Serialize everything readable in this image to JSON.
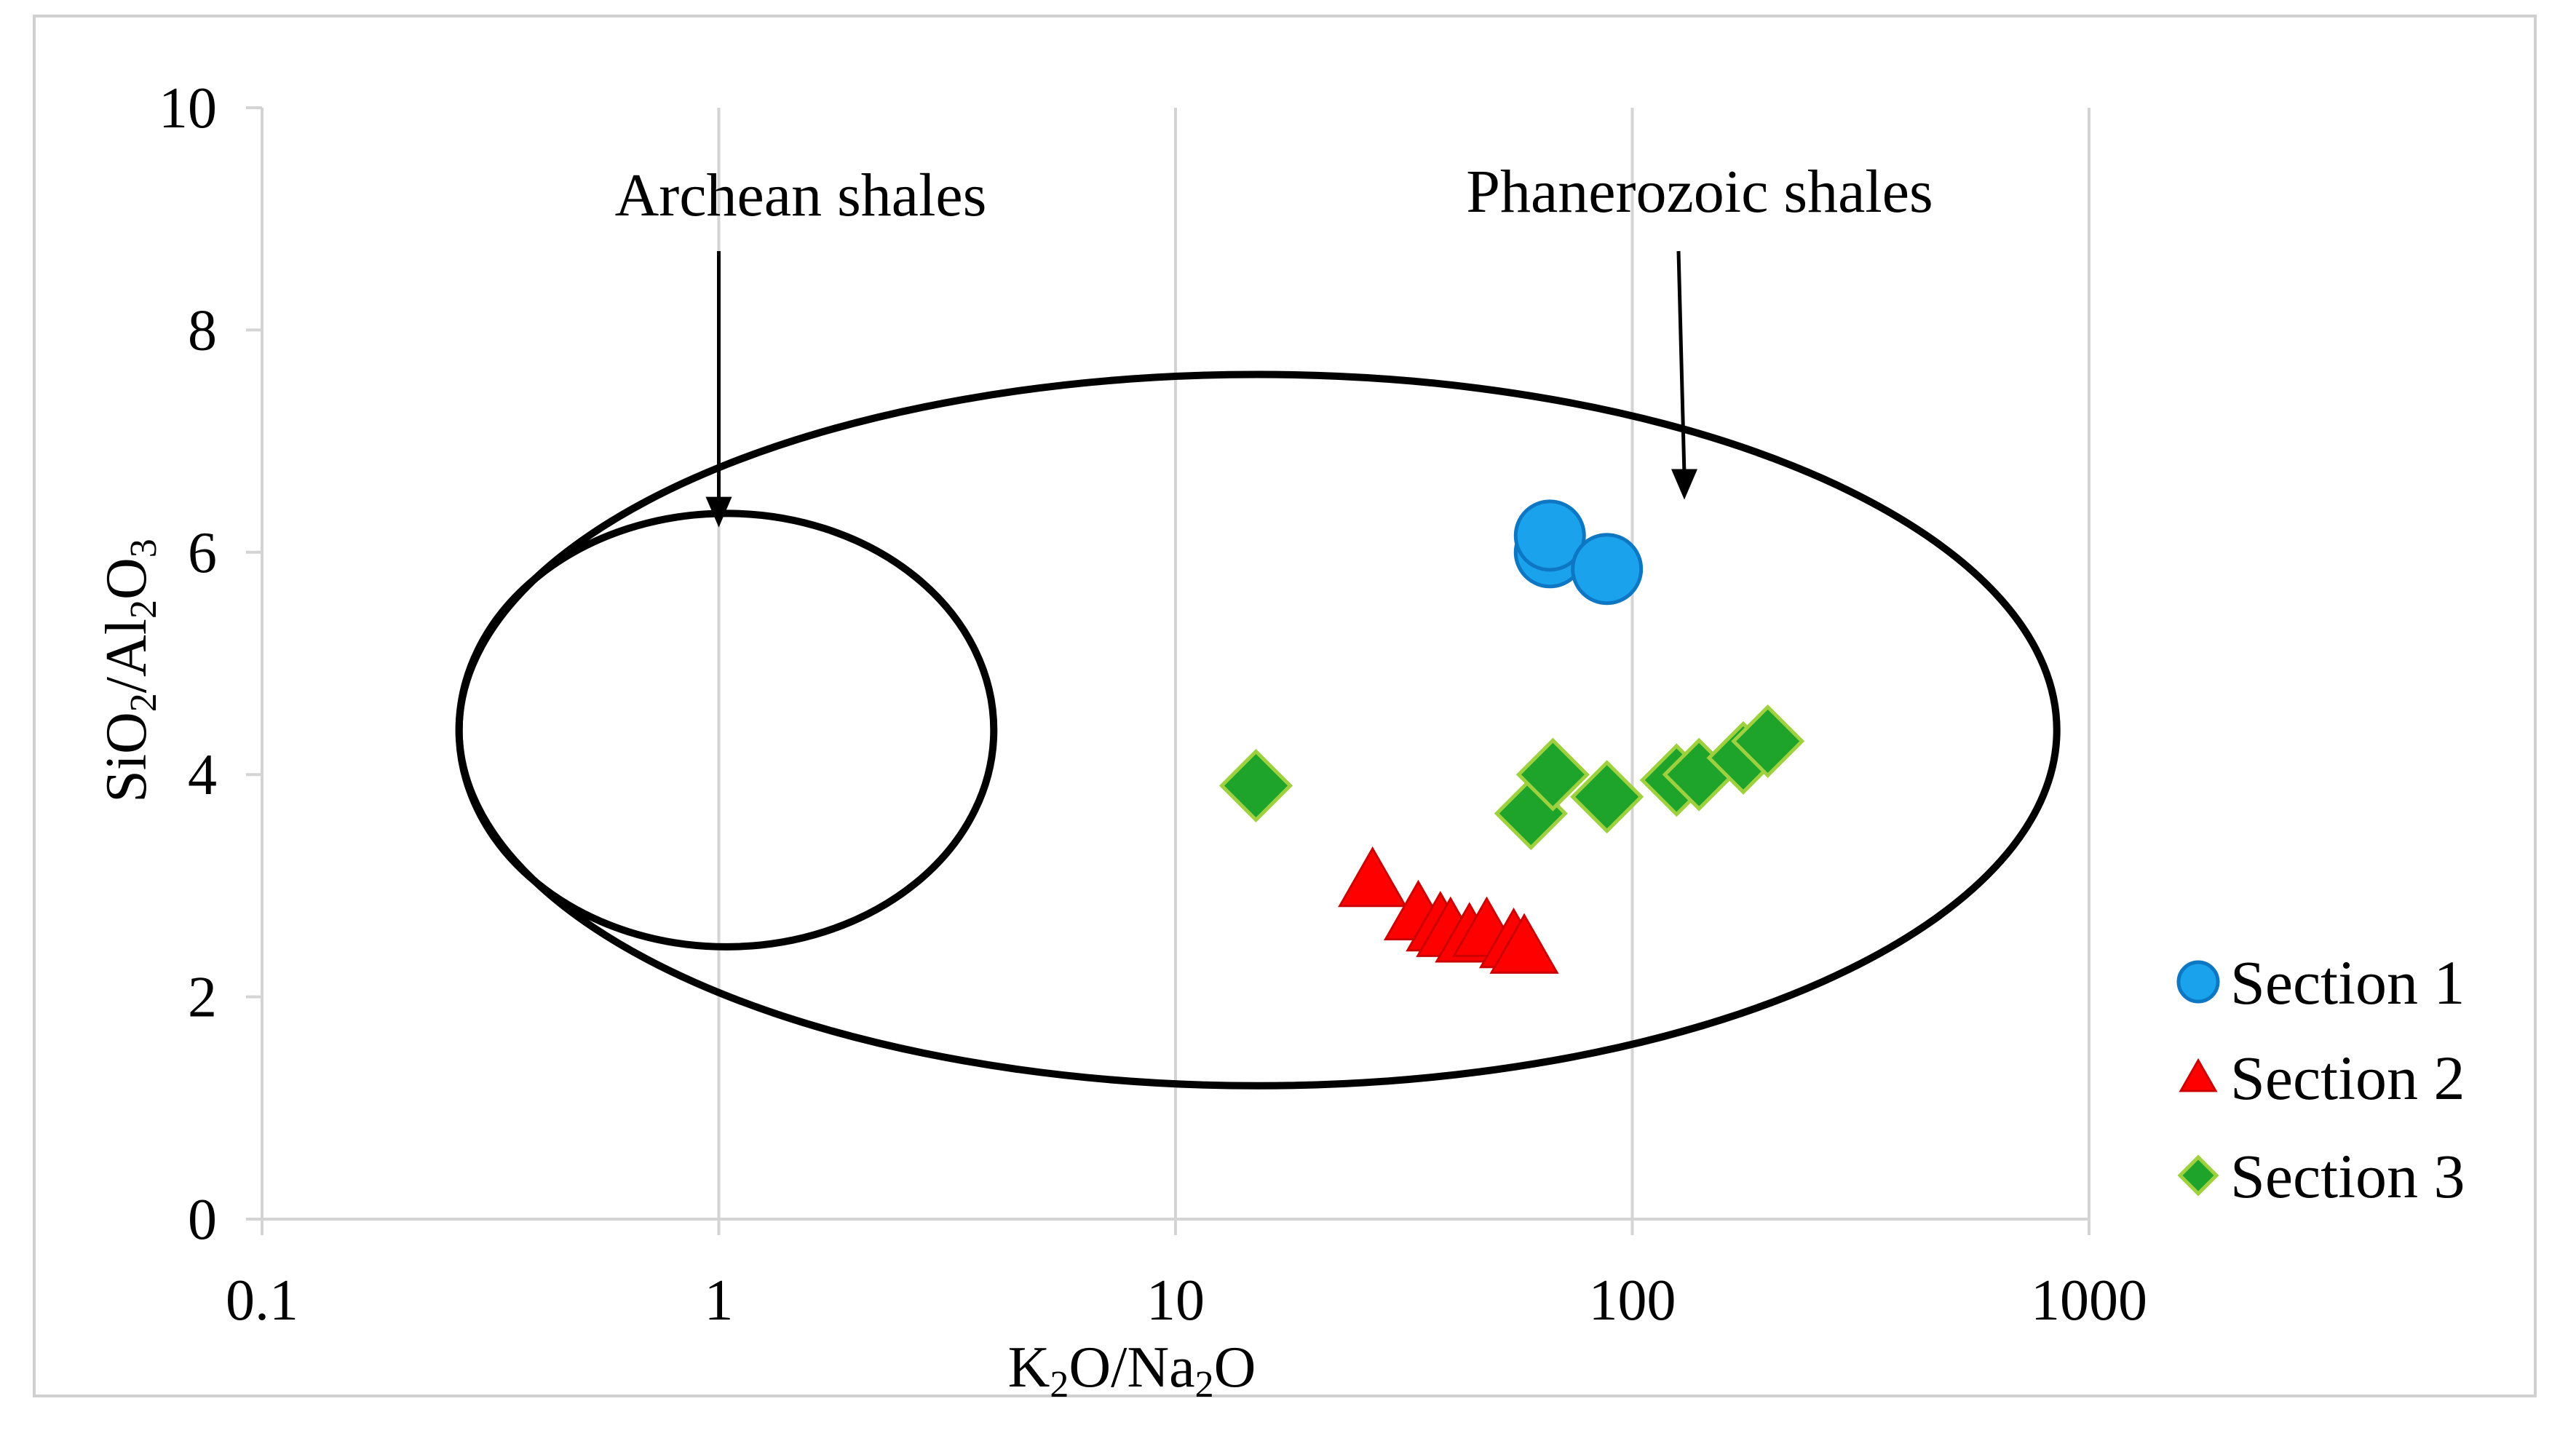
{
  "chart_data": {
    "type": "scatter",
    "x_scale": "log",
    "xlabel": {
      "parts": [
        "K",
        "2",
        "O/Na",
        "2",
        "O"
      ]
    },
    "ylabel": {
      "parts": [
        "SiO",
        "2",
        "/Al",
        "2",
        "O",
        "3"
      ]
    },
    "xlim": [
      0.1,
      1000
    ],
    "ylim": [
      0,
      10
    ],
    "x_ticks": [
      0.1,
      1,
      10,
      100,
      1000
    ],
    "x_tick_labels": [
      "0.1",
      "1",
      "10",
      "100",
      "1000"
    ],
    "y_ticks": [
      0,
      2,
      4,
      6,
      8,
      10
    ],
    "y_tick_labels": [
      "0",
      "2",
      "4",
      "6",
      "8",
      "10"
    ],
    "grid": "vertical",
    "legend_position": "right",
    "series": [
      {
        "name": "Section 1",
        "marker": "circle",
        "color": "#1aa3ec",
        "edge": "#0e77c4",
        "points": [
          [
            66,
            6.0
          ],
          [
            66,
            6.15
          ],
          [
            88,
            5.85
          ]
        ]
      },
      {
        "name": "Section 2",
        "marker": "triangle",
        "color": "#ff0000",
        "edge": "#cc0000",
        "points": [
          [
            27,
            3.05
          ],
          [
            34,
            2.75
          ],
          [
            38,
            2.65
          ],
          [
            40,
            2.6
          ],
          [
            44,
            2.55
          ],
          [
            48,
            2.6
          ],
          [
            55,
            2.5
          ],
          [
            58,
            2.45
          ]
        ]
      },
      {
        "name": "Section 3",
        "marker": "diamond",
        "color": "#1ea32b",
        "edge": "#9fd13f",
        "points": [
          [
            15,
            3.9
          ],
          [
            60,
            3.65
          ],
          [
            67,
            4.0
          ],
          [
            88,
            3.8
          ],
          [
            125,
            3.95
          ],
          [
            140,
            4.0
          ],
          [
            175,
            4.15
          ],
          [
            198,
            4.3
          ]
        ]
      }
    ],
    "regions": [
      {
        "name": "Archean shales",
        "x_range": [
          0.27,
          4.0
        ],
        "y_range": [
          2.45,
          6.35
        ],
        "annotation": "Archean shales",
        "arrow_to": [
          1.0,
          6.25
        ]
      },
      {
        "name": "Phanerozoic shales",
        "x_range": [
          0.27,
          850
        ],
        "y_range": [
          1.2,
          7.6
        ],
        "annotation": "Phanerozoic shales",
        "arrow_to": [
          130,
          6.5
        ]
      }
    ]
  }
}
